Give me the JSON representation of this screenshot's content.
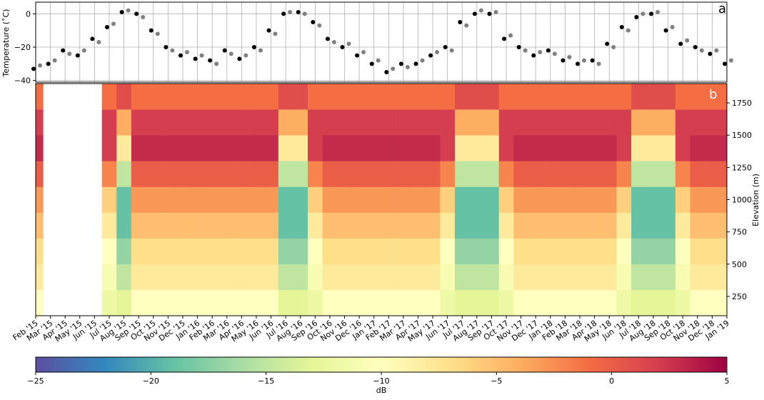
{
  "chart_data": [
    {
      "type": "scatter",
      "ylabel": "Temperature (˚C)",
      "panel_label": "a",
      "ylim": [
        -41,
        7
      ],
      "yticks": [
        {
          "value": -40,
          "label": "−40"
        },
        {
          "value": -20,
          "label": "−20"
        },
        0
      ],
      "grid": true,
      "series": [
        {
          "name": "black",
          "color": "#000000",
          "values": [
            -33,
            -30,
            -22,
            -25,
            -15,
            -8,
            1,
            0,
            -10,
            -20,
            -25,
            -27,
            -28,
            -22,
            -27,
            -20,
            -10,
            0,
            1,
            -5,
            -15,
            -20,
            -25,
            -30,
            -35,
            -30,
            -30,
            -25,
            -20,
            -5,
            0,
            0,
            -15,
            -20,
            -25,
            -22,
            -28,
            -30,
            -28,
            -18,
            -8,
            -2,
            0,
            -10,
            -18,
            -20,
            -24,
            -30
          ]
        },
        {
          "name": "gray",
          "color": "#808080",
          "values": [
            -31,
            -28,
            -24,
            -22,
            -17,
            -6,
            2,
            -2,
            -12,
            -22,
            -23,
            -25,
            -30,
            -24,
            -25,
            -22,
            -12,
            1,
            0,
            -7,
            -17,
            -18,
            -23,
            -28,
            -33,
            -32,
            -28,
            -23,
            -22,
            -7,
            2,
            1,
            -13,
            -22,
            -23,
            -24,
            -26,
            -28,
            -30,
            -20,
            -10,
            0,
            1,
            -8,
            -16,
            -22,
            -22,
            -28
          ]
        }
      ]
    },
    {
      "type": "heatmap",
      "panel_label": "b",
      "ylabel": "Elevation (m)",
      "zlabel": "dB",
      "categories": [
        "Feb '15",
        "Mar '15",
        "Apr '15",
        "May '15",
        "Jun '15",
        "Jul '15",
        "Aug '15",
        "Sep '15",
        "Oct '15",
        "Nov '15",
        "Dec '15",
        "Jan '16",
        "Feb '16",
        "Mar '16",
        "Apr '16",
        "May '16",
        "Jun '16",
        "Jul '16",
        "Aug '16",
        "Sep '16",
        "Oct '16",
        "Nov '16",
        "Dec '16",
        "Jan '17",
        "Feb '17",
        "Mar '17",
        "Apr '17",
        "May '17",
        "Jun '17",
        "Jul '17",
        "Aug '17",
        "Sep '17",
        "Oct '17",
        "Nov '17",
        "Dec '17",
        "Jan '18",
        "Feb '18",
        "Mar '18",
        "Apr '18",
        "May '18",
        "Jun '18",
        "Jul '18",
        "Aug '18",
        "Sep '18",
        "Oct '18",
        "Nov '18",
        "Dec '18",
        "Jan '19"
      ],
      "y": [
        200,
        400,
        600,
        800,
        1000,
        1200,
        1400,
        1600,
        1800
      ],
      "ylim": [
        100,
        1900
      ],
      "yticks": [
        250,
        500,
        750,
        1000,
        1250,
        1500,
        1750
      ],
      "zlim": [
        -25,
        5
      ],
      "zticks": [
        {
          "value": -25,
          "label": "−25"
        },
        {
          "value": -20,
          "label": "−20"
        },
        {
          "value": -15,
          "label": "−15"
        },
        {
          "value": -10,
          "label": "−10"
        },
        {
          "value": -5,
          "label": "−5"
        },
        0,
        5
      ],
      "colormap": [
        "#5e4fa2",
        "#3288bd",
        "#66c2a5",
        "#abdda4",
        "#e6f598",
        "#ffffbf",
        "#fee08b",
        "#fdae61",
        "#f46d43",
        "#d53e4f",
        "#9e0142"
      ],
      "z": [
        [
          -10,
          null,
          null,
          null,
          null,
          -12,
          -13,
          -10,
          -10,
          -10,
          -10,
          -10,
          -10,
          -10,
          -10,
          -10,
          -10,
          -13,
          -13,
          -12,
          -10,
          -10,
          -10,
          -10,
          -10,
          -10,
          -10,
          -10,
          -12,
          -13,
          -13,
          -13,
          -12,
          -10,
          -10,
          -10,
          -10,
          -10,
          -10,
          -10,
          -12,
          -13,
          -13,
          -13,
          -12,
          -10,
          -10,
          -10
        ],
        [
          -8,
          null,
          null,
          null,
          null,
          -11,
          -15,
          -8,
          -8,
          -8,
          -8,
          -8,
          -8,
          -8,
          -8,
          -8,
          -8,
          -15,
          -15,
          -11,
          -8,
          -8,
          -8,
          -8,
          -8,
          -8,
          -8,
          -8,
          -11,
          -15,
          -15,
          -15,
          -11,
          -8,
          -8,
          -8,
          -8,
          -8,
          -8,
          -8,
          -11,
          -15,
          -15,
          -15,
          -11,
          -8,
          -8,
          -8
        ],
        [
          -7,
          null,
          null,
          null,
          null,
          -10,
          -17,
          -7,
          -7,
          -7,
          -7,
          -7,
          -7,
          -7,
          -7,
          -7,
          -7,
          -17,
          -17,
          -10,
          -7,
          -7,
          -7,
          -7,
          -7,
          -7,
          -7,
          -7,
          -10,
          -17,
          -17,
          -17,
          -10,
          -7,
          -7,
          -7,
          -7,
          -7,
          -7,
          -7,
          -10,
          -17,
          -17,
          -17,
          -10,
          -7,
          -7,
          -7
        ],
        [
          -5,
          null,
          null,
          null,
          null,
          -8,
          -19,
          -5,
          -5,
          -5,
          -5,
          -5,
          -5,
          -5,
          -5,
          -5,
          -5,
          -19,
          -19,
          -8,
          -5,
          -5,
          -5,
          -5,
          -5,
          -5,
          -5,
          -5,
          -8,
          -19,
          -19,
          -19,
          -8,
          -5,
          -5,
          -5,
          -5,
          -5,
          -5,
          -5,
          -8,
          -19,
          -19,
          -19,
          -8,
          -5,
          -5,
          -5
        ],
        [
          -3,
          null,
          null,
          null,
          null,
          -6,
          -19,
          -3,
          -3,
          -3,
          -3,
          -3,
          -3,
          -3,
          -3,
          -3,
          -3,
          -19,
          -19,
          -6,
          -3,
          -3,
          -3,
          -3,
          -3,
          -3,
          -3,
          -3,
          -6,
          -19,
          -19,
          -19,
          -6,
          -3,
          -3,
          -3,
          -3,
          -3,
          -3,
          -3,
          -6,
          -19,
          -19,
          -19,
          -6,
          -3,
          -3,
          -3
        ],
        [
          0,
          null,
          null,
          null,
          null,
          -2,
          -15,
          0,
          0,
          0,
          0,
          0,
          0,
          0,
          0,
          0,
          0,
          -15,
          -15,
          -2,
          0,
          0,
          0,
          0,
          0,
          0,
          0,
          0,
          -2,
          -15,
          -15,
          -15,
          -2,
          0,
          0,
          0,
          0,
          0,
          0,
          0,
          -2,
          -15,
          -15,
          -15,
          -2,
          0,
          0,
          0
        ],
        [
          3,
          null,
          null,
          null,
          null,
          2,
          -8,
          3,
          3,
          3,
          3,
          3,
          3,
          3,
          3,
          3,
          3,
          -8,
          -8,
          2,
          3,
          3,
          3,
          3,
          3,
          3,
          3,
          3,
          2,
          -8,
          -8,
          -8,
          2,
          3,
          3,
          3,
          3,
          3,
          3,
          3,
          2,
          -8,
          -8,
          -8,
          2,
          3,
          3,
          3
        ],
        [
          2,
          null,
          null,
          null,
          null,
          2,
          -4,
          2,
          2,
          2,
          2,
          2,
          2,
          2,
          2,
          2,
          2,
          -4,
          -4,
          2,
          2,
          2,
          2,
          2,
          2,
          2,
          2,
          2,
          2,
          -4,
          -4,
          -4,
          2,
          2,
          2,
          2,
          2,
          2,
          2,
          2,
          2,
          -4,
          -4,
          -4,
          2,
          2,
          2,
          2
        ],
        [
          -1,
          null,
          null,
          null,
          null,
          -1,
          1,
          -1,
          -1,
          -1,
          -1,
          -1,
          -1,
          -1,
          -1,
          -1,
          -1,
          1,
          1,
          -1,
          -1,
          -1,
          -1,
          -1,
          -1,
          -1,
          -1,
          -1,
          -1,
          1,
          1,
          1,
          -1,
          -1,
          -1,
          -1,
          -1,
          -1,
          -1,
          -1,
          -1,
          1,
          1,
          1,
          -1,
          -1,
          -1,
          -1
        ]
      ]
    }
  ]
}
